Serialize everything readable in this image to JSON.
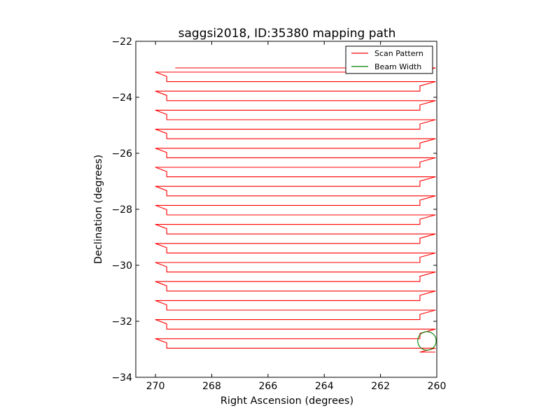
{
  "chart_data": {
    "type": "line",
    "title": "saggsi2018, ID:35380 mapping path",
    "xlabel": "Right Ascension (degrees)",
    "ylabel": "Declination (degrees)",
    "xlim": [
      270.7,
      260.0
    ],
    "ylim": [
      -34,
      -22
    ],
    "x_reversed": true,
    "x_ticks": [
      {
        "value": 270,
        "label": "270"
      },
      {
        "value": 268,
        "label": "268"
      },
      {
        "value": 266,
        "label": "266"
      },
      {
        "value": 264,
        "label": "264"
      },
      {
        "value": 262,
        "label": "262"
      },
      {
        "value": 260,
        "label": "260"
      }
    ],
    "y_ticks": [
      {
        "value": -22,
        "label": "−22"
      },
      {
        "value": -24,
        "label": "−24"
      },
      {
        "value": -26,
        "label": "−26"
      },
      {
        "value": -28,
        "label": "−28"
      },
      {
        "value": -30,
        "label": "−30"
      },
      {
        "value": -32,
        "label": "−32"
      },
      {
        "value": -34,
        "label": "−34"
      }
    ],
    "grid": false,
    "legend": {
      "placement": "top-right",
      "entries": [
        {
          "label": "Scan Pattern",
          "color": "#ff0000"
        },
        {
          "label": "Beam Width",
          "color": "#008000"
        }
      ]
    },
    "series": [
      {
        "name": "Scan Pattern",
        "color": "#ff0000",
        "scan": {
          "ra_west": 270.0,
          "ra_west_indent": 269.6,
          "ra_east": 260.05,
          "ra_east_indent": 260.6,
          "ra_start": 269.3,
          "dec_first": -22.95,
          "dec_first_leg": -23.1,
          "dec_last": -33.1,
          "row_spacing": 0.34,
          "legs": 30
        }
      },
      {
        "name": "Beam Width",
        "color": "#008000",
        "circle": {
          "ra": 260.35,
          "dec": -32.7,
          "radius_deg": 0.33
        }
      }
    ]
  }
}
